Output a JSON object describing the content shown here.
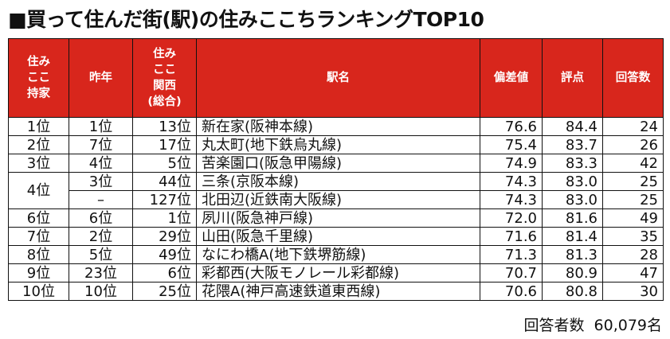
{
  "title": "■買って住んだ街(駅)の住みここちランキングTOP10",
  "headers": {
    "rank": [
      "住み",
      "ここ",
      "持家"
    ],
    "last_year": "昨年",
    "kansai": [
      "住み",
      "ここ",
      "関西",
      "(総合)"
    ],
    "station": "駅名",
    "deviation": "偏差値",
    "score": "評点",
    "responses": "回答数"
  },
  "rows": [
    {
      "rank": "1位",
      "last": "1位",
      "kansai": "13位",
      "station": "新在家(阪神本線)",
      "dev": "76.6",
      "score": "84.4",
      "resp": "24"
    },
    {
      "rank": "2位",
      "last": "7位",
      "kansai": "17位",
      "station": "丸太町(地下鉄烏丸線)",
      "dev": "75.4",
      "score": "83.7",
      "resp": "26"
    },
    {
      "rank": "3位",
      "last": "4位",
      "kansai": "5位",
      "station": "苦楽園口(阪急甲陽線)",
      "dev": "74.9",
      "score": "83.3",
      "resp": "42"
    },
    {
      "rank": "4位",
      "last": "3位",
      "kansai": "44位",
      "station": "三条(京阪本線)",
      "dev": "74.3",
      "score": "83.0",
      "resp": "25"
    },
    {
      "rank": "",
      "last": "–",
      "kansai": "127位",
      "station": "北田辺(近鉄南大阪線)",
      "dev": "74.3",
      "score": "83.0",
      "resp": "25"
    },
    {
      "rank": "6位",
      "last": "6位",
      "kansai": "1位",
      "station": "夙川(阪急神戸線)",
      "dev": "72.0",
      "score": "81.6",
      "resp": "49"
    },
    {
      "rank": "7位",
      "last": "2位",
      "kansai": "29位",
      "station": "山田(阪急千里線)",
      "dev": "71.6",
      "score": "81.4",
      "resp": "35"
    },
    {
      "rank": "8位",
      "last": "5位",
      "kansai": "49位",
      "station": "なにわ橋A(地下鉄堺筋線)",
      "dev": "71.3",
      "score": "81.3",
      "resp": "28"
    },
    {
      "rank": "9位",
      "last": "23位",
      "kansai": "6位",
      "station": "彩都西(大阪モノレール彩都線)",
      "dev": "70.7",
      "score": "80.9",
      "resp": "47"
    },
    {
      "rank": "10位",
      "last": "10位",
      "kansai": "25位",
      "station": "花隈A(神戸高速鉄道東西線)",
      "dev": "70.6",
      "score": "80.8",
      "resp": "30"
    }
  ],
  "footer": {
    "label": "回答者数",
    "value": "60,079名"
  }
}
